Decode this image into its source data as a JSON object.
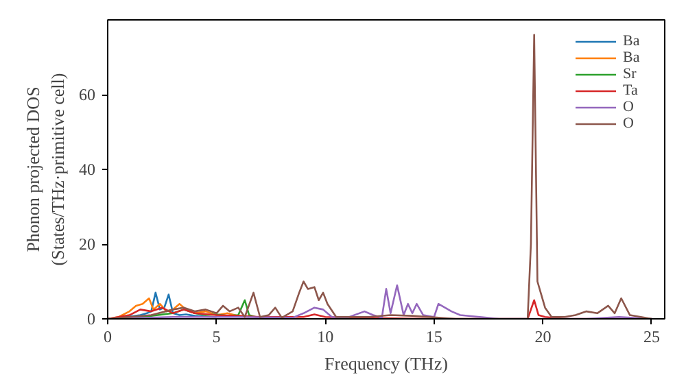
{
  "chart_data": {
    "type": "line",
    "xlabel": "Frequency (THz)",
    "ylabel": "Phonon projected DOS\n(States/THz·primitive cell)",
    "xlim": [
      0,
      25.6
    ],
    "ylim": [
      0,
      80
    ],
    "xticks": [
      0,
      5,
      10,
      15,
      20,
      25
    ],
    "yticks": [
      0,
      20,
      40,
      60
    ],
    "legend": "top right",
    "grid": false,
    "series": [
      {
        "name": "Ba",
        "color": "#1f77b4",
        "x": [
          0,
          0.5,
          1,
          1.5,
          1.8,
          2.0,
          2.2,
          2.4,
          2.6,
          2.8,
          3.0,
          3.3,
          3.6,
          4.0,
          4.5,
          5.0
        ],
        "values": [
          0,
          0.2,
          0.6,
          1.0,
          1.5,
          2.0,
          7.0,
          2.5,
          3.0,
          6.5,
          1.5,
          1.0,
          1.2,
          0.8,
          0.6,
          0.5
        ]
      },
      {
        "name": "Ba",
        "color": "#ff7f0e",
        "x": [
          0,
          0.5,
          1,
          1.3,
          1.6,
          1.9,
          2.1,
          2.4,
          2.7,
          3.0,
          3.3,
          3.6,
          4.0,
          4.5,
          5.0,
          5.5,
          6.0,
          6.5
        ],
        "values": [
          0,
          0.5,
          2.0,
          3.5,
          4.0,
          5.5,
          2.5,
          4.0,
          2.0,
          2.5,
          4.0,
          2.5,
          1.5,
          2.0,
          1.0,
          1.5,
          0.8,
          0.5
        ]
      },
      {
        "name": "Sr",
        "color": "#2ca02c",
        "x": [
          0,
          1,
          2,
          3,
          3.5,
          4,
          4.5,
          5,
          5.5,
          6.0,
          6.3,
          6.5,
          6.8,
          7.2,
          8
        ],
        "values": [
          0,
          0.3,
          0.8,
          1.5,
          2.5,
          1.5,
          1.0,
          1.2,
          0.8,
          1.0,
          5.0,
          1.0,
          0.5,
          0.2,
          0
        ]
      },
      {
        "name": "Ta",
        "color": "#d62728",
        "x": [
          0,
          1,
          1.5,
          2,
          2.5,
          3,
          3.5,
          4,
          5,
          6,
          7,
          9,
          9.5,
          10,
          12,
          15,
          19.3,
          19.6,
          19.8,
          20.1,
          21,
          25
        ],
        "values": [
          0,
          1.0,
          2.5,
          2.0,
          3.0,
          1.5,
          2.5,
          1.5,
          1.0,
          0.8,
          0.5,
          0.5,
          1.2,
          0.5,
          0.2,
          0,
          0,
          5.0,
          1.0,
          0.5,
          0,
          0
        ]
      },
      {
        "name": "O",
        "color": "#9467bd",
        "x": [
          0,
          3,
          6,
          8.5,
          9,
          9.5,
          9.9,
          10.3,
          11,
          11.8,
          12.2,
          12.6,
          12.8,
          13.0,
          13.3,
          13.6,
          13.8,
          14.0,
          14.2,
          14.5,
          15.0,
          15.2,
          15.8,
          16.2,
          18,
          20,
          22,
          23.5,
          25
        ],
        "values": [
          0,
          0.5,
          0.5,
          0.3,
          1.5,
          3.0,
          2.5,
          0.5,
          0.3,
          2.0,
          1.0,
          0.3,
          8.0,
          1.5,
          9.0,
          1.0,
          4.0,
          1.5,
          4.0,
          1.0,
          0.5,
          4.0,
          2.0,
          1.0,
          0,
          0,
          0,
          0.5,
          0
        ]
      },
      {
        "name": "O",
        "color": "#8c564b",
        "x": [
          0,
          2,
          3,
          3.5,
          4,
          4.5,
          5,
          5.3,
          5.6,
          6,
          6.3,
          6.7,
          7.0,
          7.4,
          7.7,
          8.0,
          8.5,
          8.8,
          9.0,
          9.2,
          9.5,
          9.7,
          9.9,
          10.1,
          10.5,
          12,
          13,
          14,
          16,
          19.3,
          19.45,
          19.6,
          19.75,
          19.9,
          20.1,
          20.4,
          21,
          21.5,
          22,
          22.5,
          23,
          23.3,
          23.6,
          24,
          24.5,
          25
        ],
        "values": [
          0,
          1.0,
          2.5,
          3.0,
          2.0,
          2.5,
          1.5,
          3.5,
          2.0,
          3.0,
          0.5,
          7.0,
          0.5,
          1.0,
          3.0,
          0.3,
          2.0,
          7.0,
          10.0,
          8.0,
          8.5,
          5.0,
          7.0,
          4.0,
          0.5,
          0.5,
          1.0,
          0.8,
          0,
          0,
          20,
          76,
          10,
          7,
          3.0,
          0.5,
          0.5,
          1.0,
          2.0,
          1.5,
          3.5,
          1.5,
          5.5,
          1.0,
          0.5,
          0
        ]
      }
    ]
  }
}
